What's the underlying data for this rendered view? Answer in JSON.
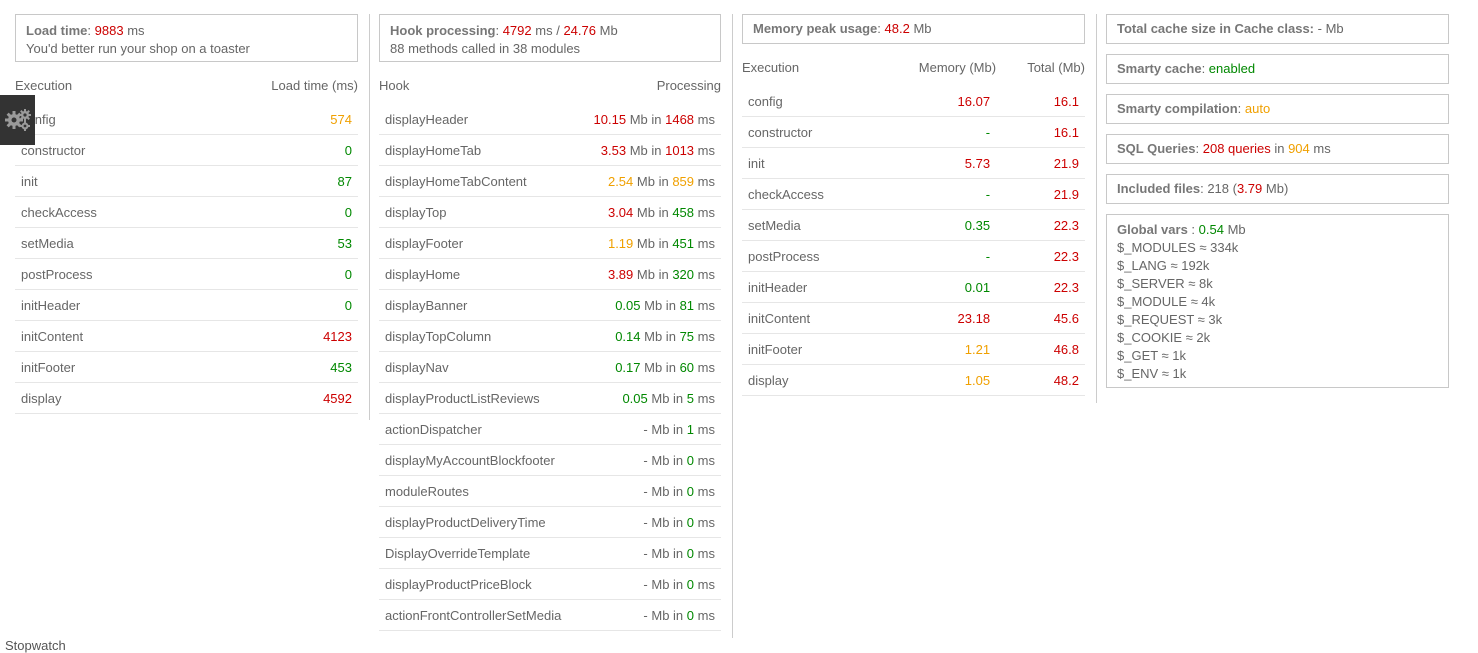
{
  "load": {
    "label": "Load time",
    "value": "9883",
    "unit": "ms",
    "note": "You'd better run your shop on a toaster"
  },
  "execution_table": {
    "col1": "Execution",
    "col2": "Load time (ms)",
    "rows": [
      {
        "name": "config",
        "value": "574",
        "color": "orange"
      },
      {
        "name": "constructor",
        "value": "0",
        "color": "green"
      },
      {
        "name": "init",
        "value": "87",
        "color": "green"
      },
      {
        "name": "checkAccess",
        "value": "0",
        "color": "green"
      },
      {
        "name": "setMedia",
        "value": "53",
        "color": "green"
      },
      {
        "name": "postProcess",
        "value": "0",
        "color": "green"
      },
      {
        "name": "initHeader",
        "value": "0",
        "color": "green"
      },
      {
        "name": "initContent",
        "value": "4123",
        "color": "red"
      },
      {
        "name": "initFooter",
        "value": "453",
        "color": "green"
      },
      {
        "name": "display",
        "value": "4592",
        "color": "red"
      }
    ]
  },
  "hooks": {
    "label": "Hook processing",
    "ms": "4792",
    "ms_unit": "ms /",
    "mb": "24.76",
    "mb_unit": "Mb",
    "summary": "88 methods called in 38 modules"
  },
  "hook_table": {
    "col1": "Hook",
    "col2": "Processing",
    "mb_in": "Mb in",
    "ms": "ms",
    "rows": [
      {
        "name": "displayHeader",
        "mb": "10.15",
        "mb_color": "red",
        "ms": "1468",
        "ms_color": "red"
      },
      {
        "name": "displayHomeTab",
        "mb": "3.53",
        "mb_color": "red",
        "ms": "1013",
        "ms_color": "red"
      },
      {
        "name": "displayHomeTabContent",
        "mb": "2.54",
        "mb_color": "orange",
        "ms": "859",
        "ms_color": "orange"
      },
      {
        "name": "displayTop",
        "mb": "3.04",
        "mb_color": "red",
        "ms": "458",
        "ms_color": "green"
      },
      {
        "name": "displayFooter",
        "mb": "1.19",
        "mb_color": "orange",
        "ms": "451",
        "ms_color": "green"
      },
      {
        "name": "displayHome",
        "mb": "3.89",
        "mb_color": "red",
        "ms": "320",
        "ms_color": "green"
      },
      {
        "name": "displayBanner",
        "mb": "0.05",
        "mb_color": "green",
        "ms": "81",
        "ms_color": "green"
      },
      {
        "name": "displayTopColumn",
        "mb": "0.14",
        "mb_color": "green",
        "ms": "75",
        "ms_color": "green"
      },
      {
        "name": "displayNav",
        "mb": "0.17",
        "mb_color": "green",
        "ms": "60",
        "ms_color": "green"
      },
      {
        "name": "displayProductListReviews",
        "mb": "0.05",
        "mb_color": "green",
        "ms": "5",
        "ms_color": "green"
      },
      {
        "name": "actionDispatcher",
        "mb": "-",
        "mb_color": "plain",
        "ms": "1",
        "ms_color": "green"
      },
      {
        "name": "displayMyAccountBlockfooter",
        "mb": "-",
        "mb_color": "plain",
        "ms": "0",
        "ms_color": "green"
      },
      {
        "name": "moduleRoutes",
        "mb": "-",
        "mb_color": "plain",
        "ms": "0",
        "ms_color": "green"
      },
      {
        "name": "displayProductDeliveryTime",
        "mb": "-",
        "mb_color": "plain",
        "ms": "0",
        "ms_color": "green"
      },
      {
        "name": "DisplayOverrideTemplate",
        "mb": "-",
        "mb_color": "plain",
        "ms": "0",
        "ms_color": "green"
      },
      {
        "name": "displayProductPriceBlock",
        "mb": "-",
        "mb_color": "plain",
        "ms": "0",
        "ms_color": "green"
      },
      {
        "name": "actionFrontControllerSetMedia",
        "mb": "-",
        "mb_color": "plain",
        "ms": "0",
        "ms_color": "green"
      }
    ]
  },
  "memory": {
    "label": "Memory peak usage",
    "value": "48.2",
    "unit": "Mb"
  },
  "memory_table": {
    "col1": "Execution",
    "col2": "Memory (Mb)",
    "col3": "Total (Mb)",
    "rows": [
      {
        "name": "config",
        "mem": "16.07",
        "mem_color": "red",
        "total": "16.1",
        "total_color": "red"
      },
      {
        "name": "constructor",
        "mem": "-",
        "mem_color": "green",
        "total": "16.1",
        "total_color": "red"
      },
      {
        "name": "init",
        "mem": "5.73",
        "mem_color": "red",
        "total": "21.9",
        "total_color": "red"
      },
      {
        "name": "checkAccess",
        "mem": "-",
        "mem_color": "green",
        "total": "21.9",
        "total_color": "red"
      },
      {
        "name": "setMedia",
        "mem": "0.35",
        "mem_color": "green",
        "total": "22.3",
        "total_color": "red"
      },
      {
        "name": "postProcess",
        "mem": "-",
        "mem_color": "green",
        "total": "22.3",
        "total_color": "red"
      },
      {
        "name": "initHeader",
        "mem": "0.01",
        "mem_color": "green",
        "total": "22.3",
        "total_color": "red"
      },
      {
        "name": "initContent",
        "mem": "23.18",
        "mem_color": "red",
        "total": "45.6",
        "total_color": "red"
      },
      {
        "name": "initFooter",
        "mem": "1.21",
        "mem_color": "orange",
        "total": "46.8",
        "total_color": "red"
      },
      {
        "name": "display",
        "mem": "1.05",
        "mem_color": "orange",
        "total": "48.2",
        "total_color": "red"
      }
    ]
  },
  "cache": {
    "label": "Total cache size in Cache class:",
    "value": "- Mb"
  },
  "smarty_cache": {
    "label": "Smarty cache",
    "value": "enabled"
  },
  "smarty_compilation": {
    "label": "Smarty compilation",
    "value": "auto"
  },
  "sql": {
    "label": "SQL Queries",
    "queries": "208 queries",
    "in": "in",
    "ms": "904",
    "unit": "ms"
  },
  "included": {
    "label": "Included files",
    "count": "218 (",
    "size": "3.79",
    "unit": "Mb)"
  },
  "globals": {
    "label": "Global vars",
    "value": "0.54",
    "unit": "Mb",
    "vars": [
      "$_MODULES ≈ 334k",
      "$_LANG ≈ 192k",
      "$_SERVER ≈ 8k",
      "$_MODULE ≈ 4k",
      "$_REQUEST ≈ 3k",
      "$_COOKIE ≈ 2k",
      "$_GET ≈ 1k",
      "$_ENV ≈ 1k"
    ]
  },
  "stopwatch": "Stopwatch",
  "gear_icon": "gear-icon"
}
